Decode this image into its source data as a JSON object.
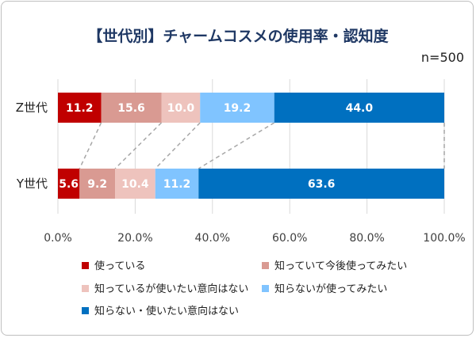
{
  "chart_data": {
    "type": "bar",
    "orientation": "horizontal-stacked-100",
    "title": "【世代別】チャームコスメの使用率・認知度",
    "subtitle": "n=500",
    "categories": [
      "Z世代",
      "Y世代"
    ],
    "series": [
      {
        "name": "使っている",
        "color": "#c00000",
        "values": [
          11.2,
          5.6
        ]
      },
      {
        "name": "知っていて今後使ってみたい",
        "color": "#d99a92",
        "values": [
          15.6,
          9.2
        ]
      },
      {
        "name": "知っているが使いたい意向はない",
        "color": "#eec3bd",
        "values": [
          10.0,
          10.4
        ]
      },
      {
        "name": "知らないが使ってみたい",
        "color": "#80c4ff",
        "values": [
          19.2,
          11.2
        ]
      },
      {
        "name": "知らない・使いたい意向はない",
        "color": "#0070c0",
        "values": [
          44.0,
          63.6
        ]
      }
    ],
    "xlim": [
      0,
      100
    ],
    "xticks": [
      "0.0%",
      "20.0%",
      "40.0%",
      "60.0%",
      "80.0%",
      "100.0%"
    ],
    "grid": true,
    "series_lines": true,
    "legend_position": "bottom"
  }
}
